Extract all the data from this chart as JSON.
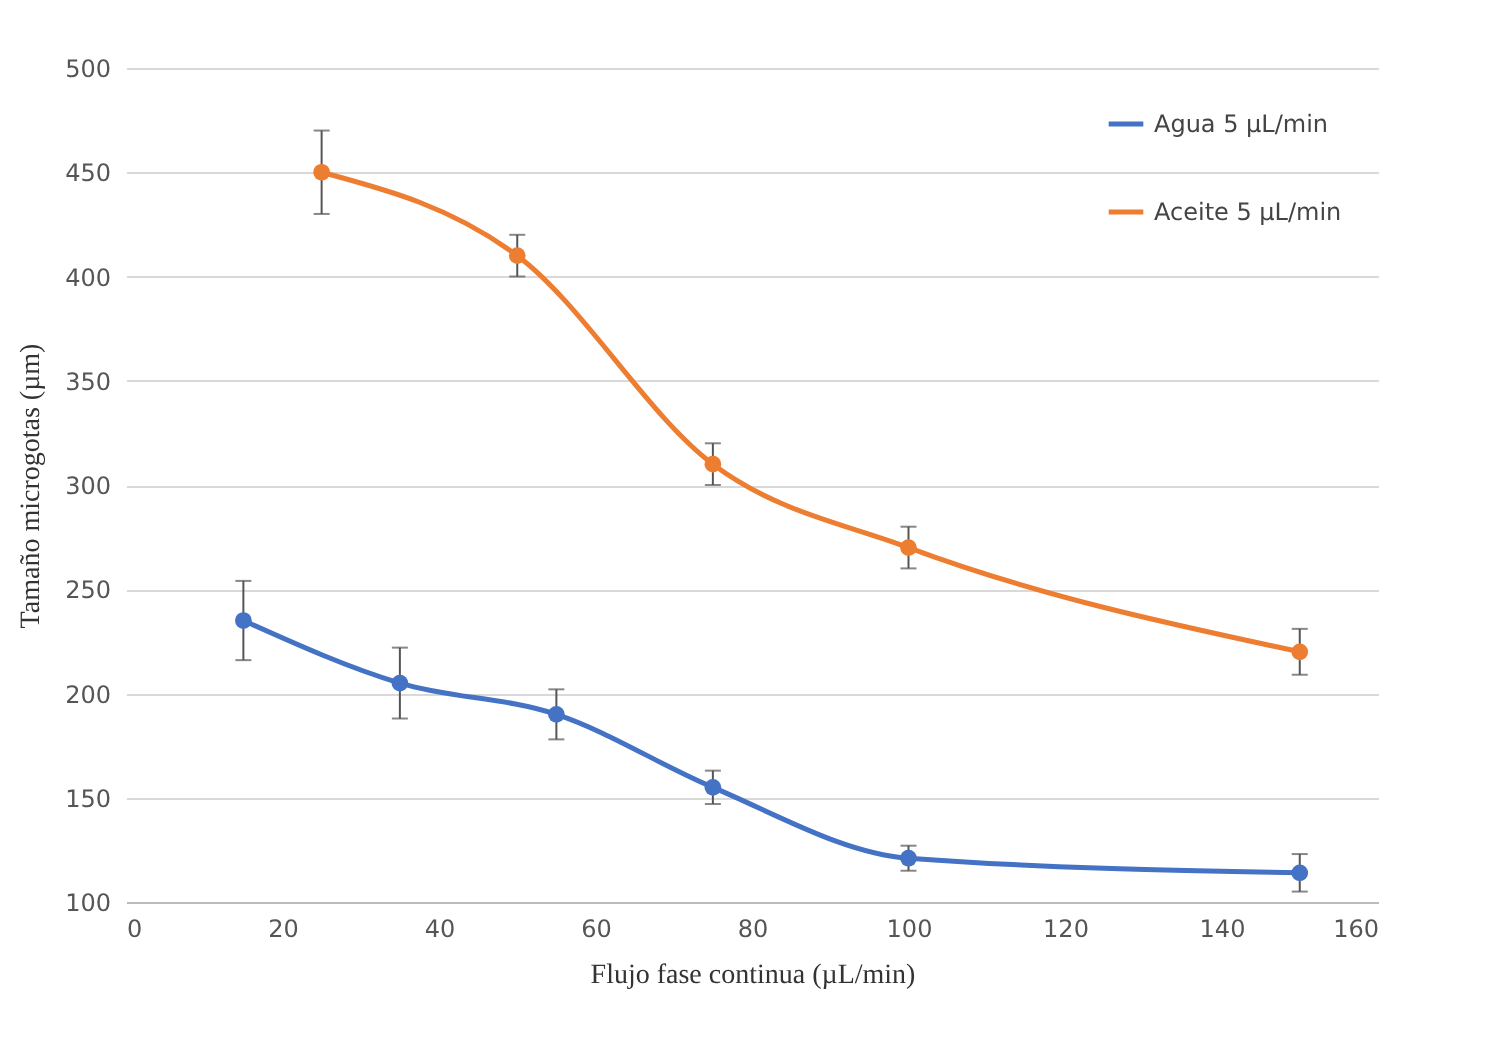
{
  "chart_data": {
    "type": "line",
    "xlabel": "Flujo fase continua (µL/min)",
    "ylabel": "Tamaño microgotas (µm)",
    "xlim": [
      0,
      160
    ],
    "xticks": [
      0,
      20,
      40,
      60,
      80,
      100,
      120,
      140,
      160
    ],
    "ylim": [
      100,
      500
    ],
    "yticks": [
      100,
      150,
      200,
      250,
      300,
      350,
      400,
      450,
      500
    ],
    "grid": "y",
    "legend": "top right",
    "marker": "circle",
    "line_style": "solid",
    "series": [
      {
        "name": "Agua 5 µL/min",
        "color": "#4472c4",
        "x": [
          15,
          35,
          55,
          75,
          100,
          150
        ],
        "values": [
          235,
          205,
          190,
          155,
          121,
          114
        ],
        "errors": [
          19,
          17,
          12,
          8,
          6,
          9
        ]
      },
      {
        "name": "Aceite 5 µL/min",
        "color": "#ed7d31",
        "x": [
          25,
          50,
          75,
          100,
          150
        ],
        "values": [
          450,
          410,
          310,
          270,
          220
        ],
        "errors": [
          20,
          10,
          10,
          10,
          11
        ]
      }
    ]
  }
}
